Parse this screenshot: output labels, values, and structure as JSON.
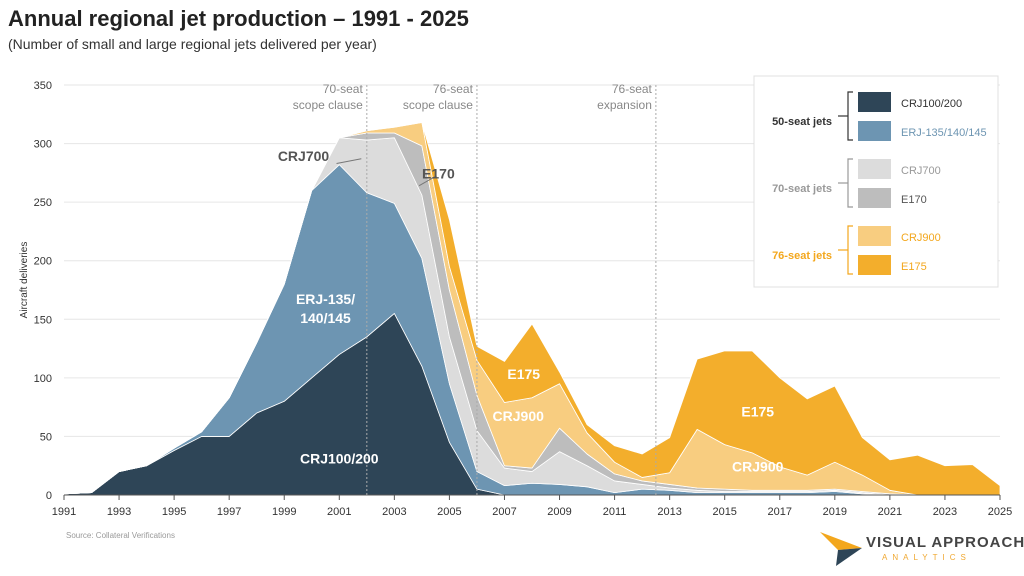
{
  "title": "Annual regional jet production – 1991 - 2025",
  "subtitle": "(Number of small and large regional jets delivered per year)",
  "source": "Source: Collateral Verifications",
  "logo": {
    "main": "VISUAL APPROACH",
    "sub": "ANALYTICS"
  },
  "colors": {
    "crj100": "#2e4557",
    "erj": "#6d95b2",
    "crj700": "#dcdcdc",
    "e170": "#bdbdbd",
    "crj900": "#f8cd80",
    "e175": "#f3ae2c",
    "group70": "#999999",
    "group76": "#f3a71d"
  },
  "chart_data": {
    "type": "area",
    "stacked": true,
    "ylabel": "Aircraft deliveries",
    "ylim": [
      0,
      350
    ],
    "xlim": [
      1991,
      2025
    ],
    "yticks": [
      0,
      50,
      100,
      150,
      200,
      250,
      300,
      350
    ],
    "xticks": [
      1991,
      1993,
      1995,
      1997,
      1999,
      2001,
      2003,
      2005,
      2007,
      2009,
      2011,
      2013,
      2015,
      2017,
      2019,
      2021,
      2023,
      2025
    ],
    "x": [
      1991,
      1992,
      1993,
      1994,
      1995,
      1996,
      1997,
      1998,
      1999,
      2000,
      2001,
      2002,
      2003,
      2004,
      2005,
      2006,
      2007,
      2008,
      2009,
      2010,
      2011,
      2012,
      2013,
      2014,
      2015,
      2016,
      2017,
      2018,
      2019,
      2020,
      2021,
      2022,
      2023,
      2024,
      2025
    ],
    "series": [
      {
        "name": "CRJ100/200",
        "values": [
          1,
          2,
          20,
          25,
          38,
          50,
          50,
          70,
          80,
          100,
          120,
          135,
          155,
          110,
          45,
          5,
          0,
          0,
          0,
          0,
          0,
          0,
          0,
          0,
          0,
          0,
          0,
          0,
          0,
          0,
          0,
          0,
          0,
          0,
          0
        ]
      },
      {
        "name": "ERJ-135/140/145",
        "values": [
          0,
          0,
          0,
          0,
          2,
          4,
          33,
          60,
          100,
          160,
          162,
          123,
          94,
          92,
          50,
          15,
          8,
          10,
          9,
          7,
          2,
          5,
          4,
          2,
          2,
          2,
          2,
          2,
          3,
          1,
          0,
          0,
          0,
          0,
          0
        ]
      },
      {
        "name": "CRJ700",
        "values": [
          0,
          0,
          0,
          0,
          0,
          0,
          0,
          0,
          0,
          0,
          23,
          45,
          56,
          54,
          40,
          35,
          15,
          10,
          28,
          18,
          10,
          4,
          2,
          2,
          1,
          1,
          1,
          1,
          1,
          1,
          0,
          0,
          0,
          0,
          0
        ]
      },
      {
        "name": "E170",
        "values": [
          0,
          0,
          0,
          0,
          0,
          0,
          0,
          0,
          0,
          0,
          0,
          6,
          4,
          42,
          40,
          30,
          2,
          3,
          20,
          10,
          6,
          3,
          3,
          2,
          2,
          1,
          1,
          1,
          1,
          1,
          1,
          0,
          0,
          0,
          0
        ]
      },
      {
        "name": "CRJ900",
        "values": [
          0,
          0,
          0,
          0,
          0,
          0,
          0,
          0,
          0,
          0,
          0,
          2,
          5,
          20,
          20,
          30,
          54,
          60,
          38,
          18,
          10,
          3,
          10,
          50,
          38,
          32,
          20,
          13,
          23,
          14,
          3,
          0,
          0,
          0,
          0
        ]
      },
      {
        "name": "E175",
        "values": [
          0,
          0,
          0,
          0,
          0,
          0,
          0,
          0,
          0,
          0,
          0,
          0,
          0,
          0,
          40,
          12,
          35,
          63,
          10,
          7,
          14,
          20,
          30,
          60,
          80,
          87,
          76,
          65,
          65,
          32,
          26,
          34,
          25,
          26,
          8
        ]
      }
    ],
    "annotations": [
      {
        "year": 2002,
        "label": [
          "70-seat",
          "scope clause"
        ]
      },
      {
        "year": 2006,
        "label": [
          "76-seat",
          "scope clause"
        ]
      },
      {
        "year": 2012.5,
        "label": [
          "76-seat",
          "expansion"
        ]
      }
    ],
    "area_labels": [
      {
        "text": "CRJ100/200",
        "year": 2001,
        "y": 27,
        "color": "#ffffff"
      },
      {
        "text": "ERJ-135/",
        "year": 2000.5,
        "y": 163,
        "color": "#ffffff"
      },
      {
        "text": "140/145",
        "year": 2000.5,
        "y": 147,
        "color": "#ffffff"
      },
      {
        "text": "CRJ700",
        "year": 1999.7,
        "y": 285,
        "color": "#555555"
      },
      {
        "text": "E170",
        "year": 2004.6,
        "y": 270,
        "color": "#555555"
      },
      {
        "text": "E175",
        "year": 2007.7,
        "y": 99,
        "color": "#ffffff"
      },
      {
        "text": "CRJ900",
        "year": 2007.5,
        "y": 63,
        "color": "#ffffff"
      },
      {
        "text": "E175",
        "year": 2016.2,
        "y": 67,
        "color": "#ffffff"
      },
      {
        "text": "CRJ900",
        "year": 2016.2,
        "y": 20,
        "color": "#ffffff"
      }
    ],
    "legend": {
      "placement": "top-right",
      "groups": [
        {
          "label": "50-seat jets",
          "color": "#333333",
          "items": [
            {
              "name": "CRJ100/200",
              "swatch": "#2e4557",
              "text": "#333333"
            },
            {
              "name": "ERJ-135/140/145",
              "swatch": "#6d95b2",
              "text": "#6d95b2"
            }
          ]
        },
        {
          "label": "70-seat jets",
          "color": "#999999",
          "items": [
            {
              "name": "CRJ700",
              "swatch": "#dcdcdc",
              "text": "#999999"
            },
            {
              "name": "E170",
              "swatch": "#bdbdbd",
              "text": "#555555"
            }
          ]
        },
        {
          "label": "76-seat jets",
          "color": "#f3a71d",
          "items": [
            {
              "name": "CRJ900",
              "swatch": "#f8cd80",
              "text": "#f3a71d"
            },
            {
              "name": "E175",
              "swatch": "#f3ae2c",
              "text": "#f3a71d"
            }
          ]
        }
      ]
    }
  }
}
